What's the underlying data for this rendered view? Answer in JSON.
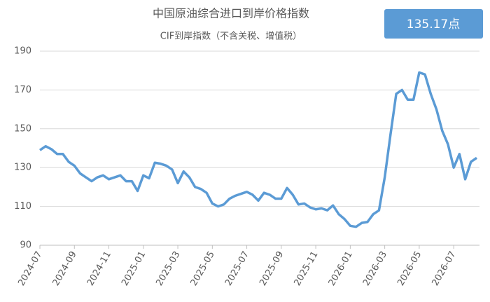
{
  "chart_data": {
    "type": "line",
    "title": "中国原油综合进口到岸价格指数",
    "subtitle": "CIF到岸指数（不含关税、增值税）",
    "annotation": "135.17点",
    "categories": [
      "2024-07",
      null,
      null,
      null,
      null,
      null,
      "2024-09",
      null,
      null,
      null,
      null,
      null,
      "2024-11",
      null,
      null,
      null,
      null,
      null,
      "2025-01",
      null,
      null,
      null,
      null,
      null,
      "2025-03",
      null,
      null,
      null,
      null,
      null,
      "2025-05",
      null,
      null,
      null,
      null,
      null,
      "2025-07",
      null,
      null,
      null,
      null,
      null,
      "2025-09",
      null,
      null,
      null,
      null,
      null,
      "2025-11",
      null,
      null,
      null,
      null,
      null,
      "2026-01",
      null,
      null,
      null,
      null,
      null,
      "2026-03",
      null,
      null,
      null,
      null,
      null,
      "2026-05",
      null,
      null,
      null,
      null,
      null,
      "2026-07",
      null,
      null,
      null,
      null
    ],
    "series": [
      {
        "color": "#5b9bd5",
        "values": [
          139,
          141,
          139.5,
          137,
          137,
          133,
          131,
          127,
          125,
          123,
          125,
          126,
          124,
          125,
          126,
          123,
          123,
          118,
          126,
          124.5,
          132.5,
          132,
          131,
          129,
          122,
          128,
          125,
          120,
          119,
          117,
          111.5,
          110,
          111,
          114,
          115.5,
          116.5,
          117.5,
          116,
          113,
          117,
          116,
          114,
          114,
          119.5,
          116,
          111,
          111.5,
          109.5,
          108.5,
          109,
          108,
          110.5,
          106,
          103.5,
          100,
          99.5,
          101.5,
          102,
          106,
          108,
          125,
          147,
          168,
          170,
          165,
          165,
          179,
          178,
          168,
          160,
          149,
          142,
          130,
          137,
          124,
          133,
          135
        ]
      }
    ],
    "ylim": [
      90,
      190
    ],
    "yticks": [
      90,
      110,
      130,
      150,
      170,
      190
    ],
    "grid": true
  }
}
